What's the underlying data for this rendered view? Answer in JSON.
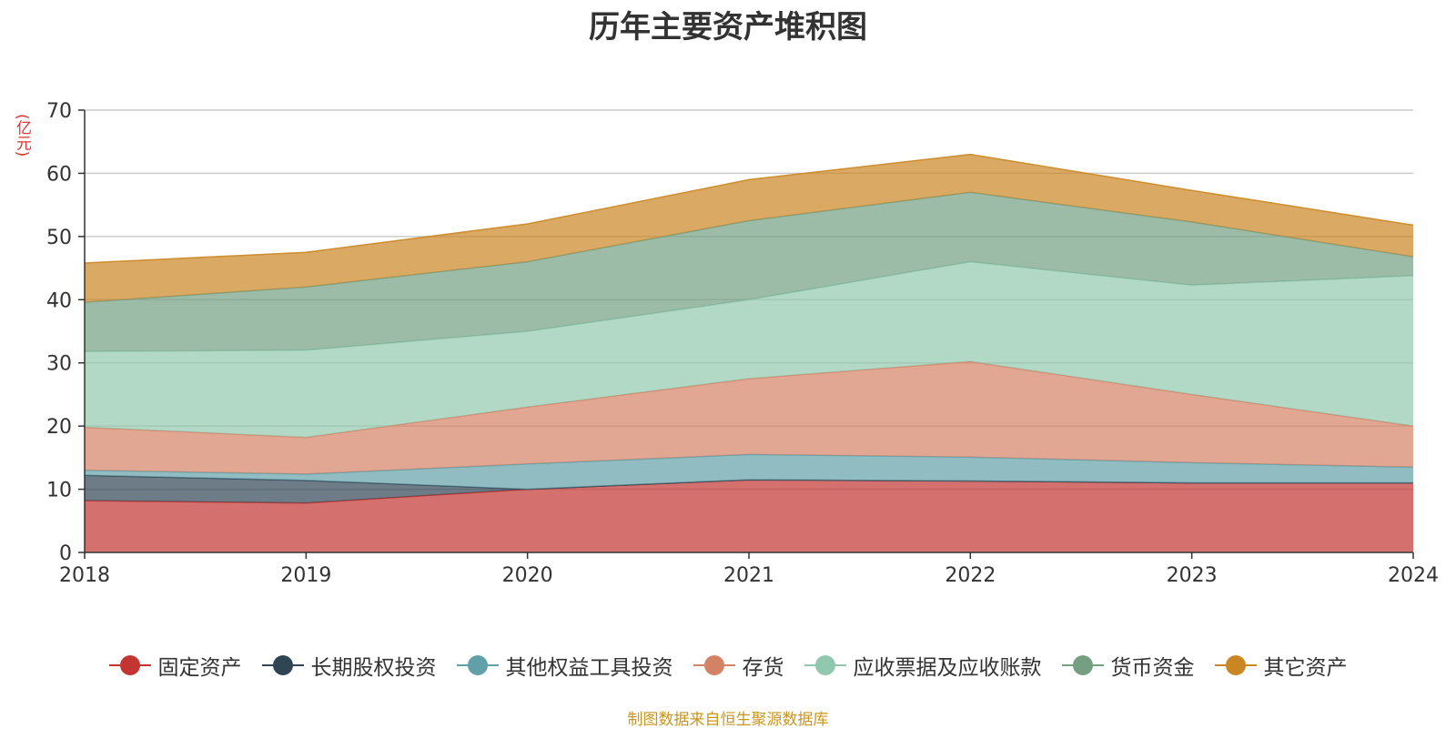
{
  "chart_data": {
    "type": "area",
    "title": "历年主要资产堆积图",
    "ylabel": "(亿元)",
    "xlabel": "",
    "categories": [
      "2018",
      "2019",
      "2020",
      "2021",
      "2022",
      "2023",
      "2024"
    ],
    "ylim": [
      0,
      70
    ],
    "yticks": [
      0,
      10,
      20,
      30,
      40,
      50,
      60,
      70
    ],
    "stacked": true,
    "grid": true,
    "legend_position": "bottom",
    "series": [
      {
        "name": "固定资产",
        "color": "#c23531",
        "values": [
          8.2,
          7.8,
          10.0,
          11.5,
          11.3,
          11.0,
          11.0
        ]
      },
      {
        "name": "长期股权投资",
        "color": "#2f4554",
        "values": [
          4.0,
          3.6,
          0.0,
          0.0,
          0.0,
          0.0,
          0.0
        ]
      },
      {
        "name": "其他权益工具投资",
        "color": "#61a0a8",
        "values": [
          0.8,
          1.0,
          4.0,
          4.0,
          3.8,
          3.2,
          2.5
        ]
      },
      {
        "name": "存货",
        "color": "#d48265",
        "values": [
          6.8,
          5.8,
          9.0,
          12.0,
          15.1,
          10.8,
          6.5
        ]
      },
      {
        "name": "应收票据及应收账款",
        "color": "#91c7ae",
        "values": [
          12.0,
          13.8,
          12.0,
          12.5,
          15.8,
          17.3,
          23.8
        ]
      },
      {
        "name": "货币资金",
        "color": "#749f83",
        "values": [
          7.8,
          10.0,
          11.0,
          12.5,
          11.0,
          10.0,
          3.0
        ]
      },
      {
        "name": "其它资产",
        "color": "#ca8622",
        "values": [
          6.2,
          5.5,
          6.0,
          6.5,
          6.0,
          5.0,
          5.0
        ]
      }
    ]
  },
  "footer": {
    "source": "制图数据来自恒生聚源数据库"
  }
}
